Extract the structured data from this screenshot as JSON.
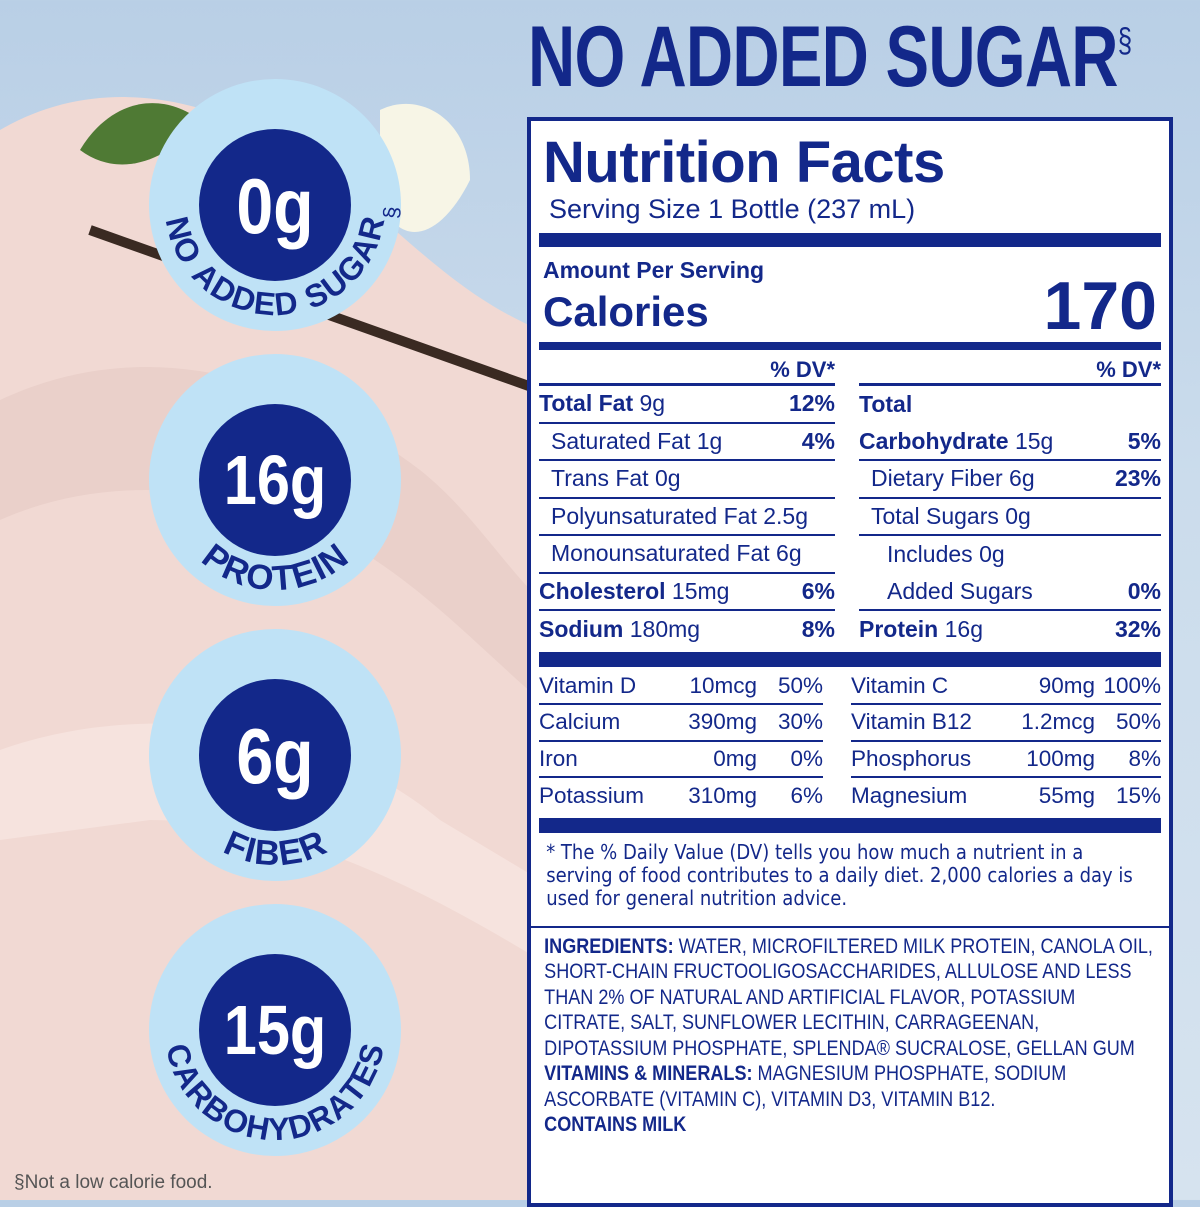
{
  "headline": {
    "text": "NO ADDED SUGAR",
    "mark": "§"
  },
  "badges": [
    {
      "value": "0g",
      "label": "NO ADDED SUGAR",
      "mark": "§"
    },
    {
      "value": "16g",
      "label": "PROTEIN"
    },
    {
      "value": "6g",
      "label": "FIBER"
    },
    {
      "value": "15g",
      "label": "CARBOHYDRATES"
    }
  ],
  "colors": {
    "navy": "#13288a",
    "ring": "#bfe2f6",
    "background": "#c7d9eb",
    "splash": "#f1d9d3"
  },
  "label": {
    "title": "Nutrition Facts",
    "serving": "Serving Size 1 Bottle (237 mL)",
    "amount_per_serving": "Amount Per Serving",
    "calories_label": "Calories",
    "calories_value": "170",
    "dv_header": "% DV*",
    "left": [
      {
        "name": "Total Fat",
        "amount": "9g",
        "dv": "12%",
        "bold": true
      },
      {
        "name": "Saturated Fat",
        "amount": "1g",
        "dv": "4%",
        "indent": 1
      },
      {
        "name": "Trans Fat",
        "amount": "0g",
        "dv": "",
        "indent": 1
      },
      {
        "name": "Polyunsaturated Fat",
        "amount": "2.5g",
        "dv": "",
        "indent": 1
      },
      {
        "name": "Monounsaturated Fat",
        "amount": "6g",
        "dv": "",
        "indent": 1
      },
      {
        "name": "Cholesterol",
        "amount": "15mg",
        "dv": "6%",
        "bold": true
      },
      {
        "name": "Sodium",
        "amount": "180mg",
        "dv": "8%",
        "bold": true
      }
    ],
    "right": [
      {
        "name": "Total",
        "amount": "",
        "dv": "",
        "bold": true
      },
      {
        "name": "Carbohydrate",
        "amount": "15g",
        "dv": "5%",
        "bold": true
      },
      {
        "name": "Dietary Fiber",
        "amount": "6g",
        "dv": "23%",
        "indent": 1
      },
      {
        "name": "Total Sugars",
        "amount": "0g",
        "dv": "",
        "indent": 1
      },
      {
        "name": "Includes",
        "amount": "0g",
        "dv": "",
        "indent": 2
      },
      {
        "name": "Added Sugars",
        "amount": "",
        "dv": "0%",
        "indent": 2
      },
      {
        "name": "Protein",
        "amount": "16g",
        "dv": "32%",
        "bold": true
      }
    ],
    "vitamins_left": [
      {
        "name": "Vitamin D",
        "amount": "10mcg",
        "dv": "50%"
      },
      {
        "name": "Calcium",
        "amount": "390mg",
        "dv": "30%"
      },
      {
        "name": "Iron",
        "amount": "0mg",
        "dv": "0%"
      },
      {
        "name": "Potassium",
        "amount": "310mg",
        "dv": "6%"
      }
    ],
    "vitamins_right": [
      {
        "name": "Vitamin C",
        "amount": "90mg",
        "dv": "100%"
      },
      {
        "name": "Vitamin B12",
        "amount": "1.2mcg",
        "dv": "50%"
      },
      {
        "name": "Phosphorus",
        "amount": "100mg",
        "dv": "8%"
      },
      {
        "name": "Magnesium",
        "amount": "55mg",
        "dv": "15%"
      }
    ],
    "footnote": "* The % Daily Value (DV) tells you how much a nutrient in a serving of food contributes to a daily diet. 2,000 calories a day is used for general nutrition advice.",
    "ingredients_heading": "INGREDIENTS:",
    "ingredients": "WATER, MICROFILTERED MILK PROTEIN, CANOLA OIL, SHORT-CHAIN FRUCTOOLIGOSACCHARIDES, ALLULOSE AND LESS THAN 2% OF NATURAL AND ARTIFICIAL FLAVOR, POTASSIUM CITRATE, SALT, SUNFLOWER LECITHIN, CARRAGEENAN, DIPOTASSIUM PHOSPHATE, SPLENDA® SUCRALOSE, GELLAN GUM",
    "vitamins_heading": "VITAMINS & MINERALS:",
    "vitamins_minerals": "MAGNESIUM PHOSPHATE, SODIUM ASCORBATE (VITAMIN C), VITAMIN D3, VITAMIN B12.",
    "contains": "CONTAINS MILK"
  },
  "disclaimer": "§Not a low calorie food."
}
